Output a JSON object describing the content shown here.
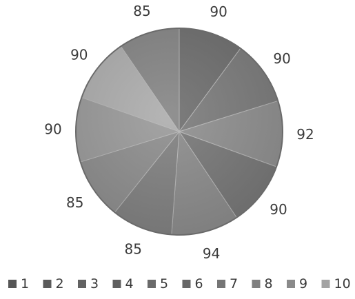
{
  "chart_data": {
    "type": "pie",
    "title": "",
    "categories": [
      "1",
      "2",
      "3",
      "4",
      "5",
      "6",
      "7",
      "8",
      "9",
      "10"
    ],
    "values": [
      90,
      90,
      92,
      90,
      94,
      85,
      85,
      90,
      90,
      85
    ],
    "legend_placement": "bottom",
    "start_angle_deg": 0,
    "direction": "clockwise",
    "colors": [
      "#6e6e6e",
      "#7b7b7b",
      "#8f8f8f",
      "#777777",
      "#8b8b8b",
      "#808080",
      "#8d8d8d",
      "#9a9a9a",
      "#adadad",
      "#858585"
    ],
    "legend_swatch_colors": [
      "#565656",
      "#5b5b5b",
      "#626262",
      "#5f5f5f",
      "#6a6a6a",
      "#676767",
      "#757575",
      "#7f7f7f",
      "#8a8a8a",
      "#a3a3a3"
    ]
  }
}
